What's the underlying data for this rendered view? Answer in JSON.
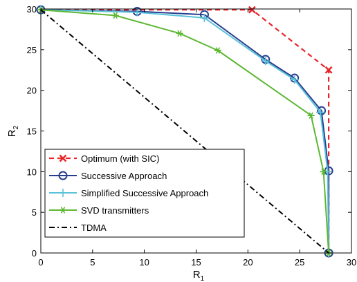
{
  "chart_data": {
    "type": "line",
    "xlabel": "R",
    "xlabel_sub": "1",
    "ylabel": "R",
    "ylabel_sub": "2",
    "xlim": [
      0,
      30
    ],
    "ylim": [
      0,
      30
    ],
    "xticks": [
      0,
      5,
      10,
      15,
      20,
      25,
      30
    ],
    "yticks": [
      0,
      5,
      10,
      15,
      20,
      25,
      30
    ],
    "grid": false,
    "legend_position": "lower-left",
    "series": [
      {
        "name": "Optimum (with SIC)",
        "color": "#e8252a",
        "line_style": "dashed",
        "marker": "x",
        "x": [
          0,
          20.4,
          27.8,
          27.8
        ],
        "y": [
          29.9,
          29.9,
          22.5,
          0
        ],
        "marker_indices": [
          1,
          2
        ]
      },
      {
        "name": "Successive Approach",
        "color": "#283d8f",
        "line_style": "solid",
        "marker": "circle",
        "x": [
          0,
          9.3,
          15.8,
          21.7,
          24.5,
          27.1,
          27.8,
          27.8
        ],
        "y": [
          29.9,
          29.7,
          29.3,
          23.8,
          21.5,
          17.5,
          10.1,
          0
        ]
      },
      {
        "name": "Simplified Successive Approach",
        "color": "#5ac3d9",
        "line_style": "solid",
        "marker": "plus",
        "x": [
          0,
          9.3,
          15.8,
          21.7,
          24.5,
          27.0,
          27.7,
          27.8
        ],
        "y": [
          29.9,
          29.6,
          28.9,
          23.6,
          21.3,
          17.3,
          10.0,
          0
        ]
      },
      {
        "name": "SVD transmitters",
        "color": "#5cb832",
        "line_style": "solid",
        "marker": "asterisk",
        "x": [
          0,
          7.2,
          13.4,
          17.1,
          26.1,
          27.3,
          27.8
        ],
        "y": [
          29.9,
          29.2,
          27.0,
          24.9,
          16.9,
          10.0,
          0
        ]
      },
      {
        "name": "TDMA",
        "color": "#000000",
        "line_style": "dashdot",
        "marker": "none",
        "x": [
          0,
          27.8
        ],
        "y": [
          29.9,
          0
        ]
      }
    ]
  }
}
